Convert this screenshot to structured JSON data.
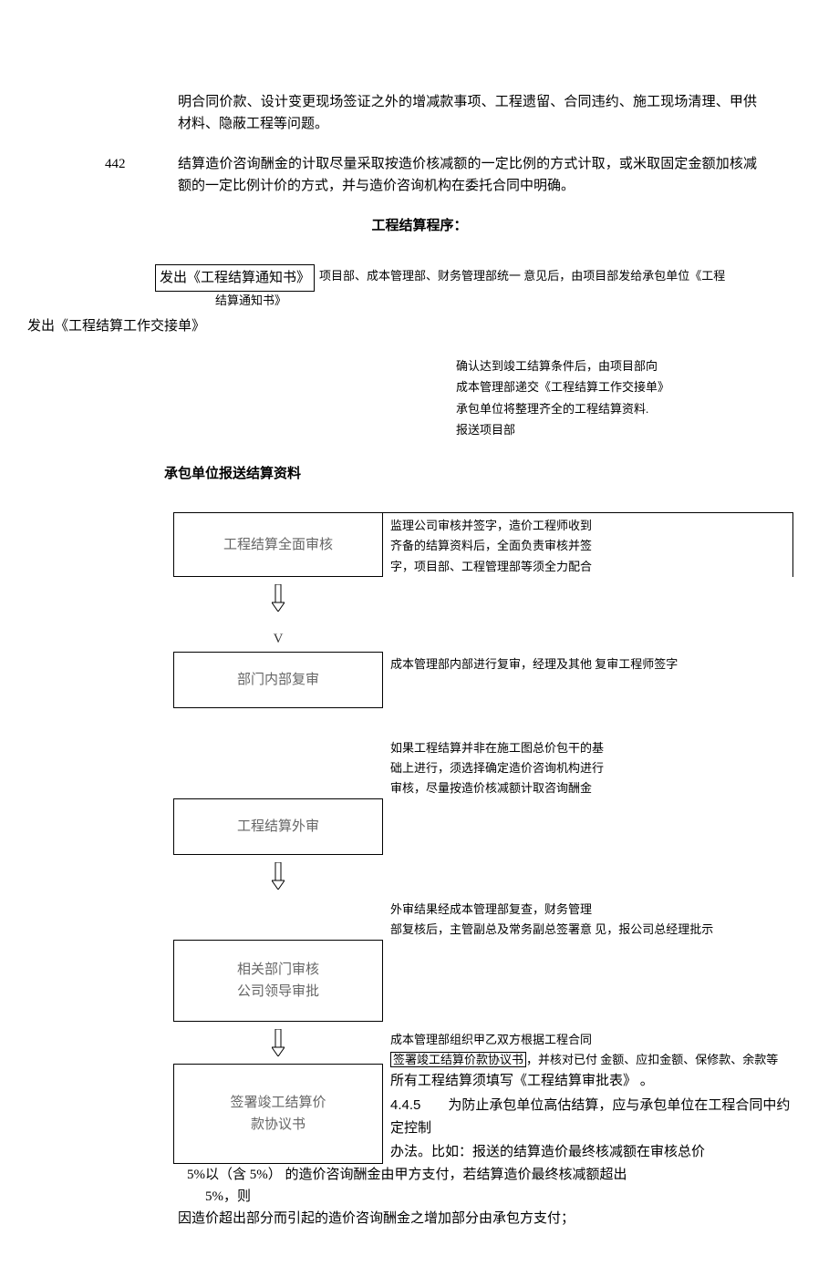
{
  "para1": "明合同价款、设计变更现场签证之外的增减款事项、工程遗留、合同违约、施工现场清理、甲供材料、隐蔽工程等问题。",
  "num442": "442",
  "para2": "结算造价咨询酬金的计取尽量采取按造价核减额的一定比例的方式计取，或米取固定金额加核减额的一定比例计价的方式，并与造价咨询机构在委托合同中明确。",
  "procTitle": "工程结算程序：",
  "notice1Box": "发出《工程结算通知书》",
  "notice1Caption": "项目部、成本管理部、财务管理部统一 意见后，由项目部发给承包单位《工程",
  "notice1Sub": "结算通知书》",
  "leftHeader": "发出《工程结算工作交接单》",
  "desc1_l1": "确认达到竣工结算条件后，由项目部向",
  "desc1_l2": "成本管理部递交《工程结算工作交接单》",
  "desc1_l3": "承包单位将整理齐全的工程结算资料.",
  "desc1_l4": "报送项目部",
  "sectionLabel": "承包单位报送结算资料",
  "flow": [
    {
      "box": "工程结算全面审核",
      "desc": "监理公司审核并签字，造价工程师收到\n齐备的结算资料后，全面负责审核并签\n字，项目部、工程管理部等须全力配合",
      "edge": true,
      "arrow": "svg"
    },
    {
      "box": "部门内部复审",
      "desc": "成本管理部内部进行复审，经理及其他 复审工程师签字",
      "edge": false,
      "arrow": "none",
      "preV": true
    },
    {
      "box": "工程结算外审",
      "desc": "如果工程结算并非在施工图总价包干的基\n础上进行，须选择确定造价咨询机构进行\n审核，尽量按造价核减额计取咨询酬金",
      "edge": false,
      "descAbove": true,
      "arrow": "svg"
    },
    {
      "box": "相关部门审核\n公司领导审批",
      "desc": "外审结果经成本管理部复查，财务管理\n部复核后，主管副总及常务副总签署意 见，报公司总经理批示",
      "edge": false,
      "descAbove": true,
      "tall": true,
      "arrow": "svg"
    },
    {
      "box": "签署竣工结算价\n款协议书",
      "desc_above": "成本管理部组织甲乙双方根据工程合同",
      "desc_underline": "签署竣工结算价款协议书，并核对已付 金额、应扣金额、保修款、余款等",
      "desc_bold1": "所有工程结算须填写《工程结算审批表》 。",
      "desc_bold2_num": "4.4.5",
      "desc_bold2": "为防止承包单位高估结算，应与承包单位在工程合同中约定控制",
      "desc_bold3": "办法。比如：报送的结算造价最终核减额在审核总价",
      "tall": true,
      "arrow": "none",
      "final": true
    }
  ],
  "wrap1": "5%以（含 5%） 的造价咨询酬金由甲方支付，若结算造价最终核减额超出",
  "wrap2": "5%，则",
  "wrap3": "因造价超出部分而引起的造价咨询酬金之增加部分由承包方支付；",
  "colors": {
    "boxText": "#666666",
    "text": "#000000",
    "border": "#000000",
    "bg": "#ffffff"
  }
}
